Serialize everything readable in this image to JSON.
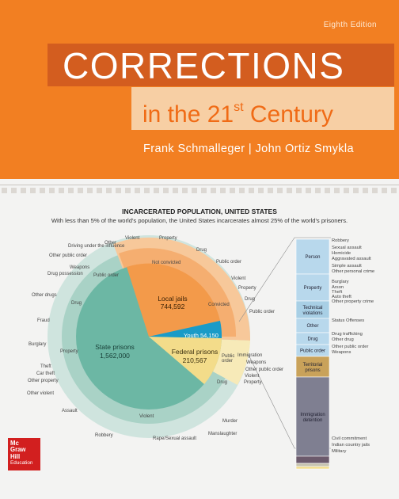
{
  "edition": "Eighth Edition",
  "title": "CORRECTIONS",
  "subtitle_main": "in the 21",
  "subtitle_sup": "st",
  "subtitle_end": " Century",
  "authors": "Frank Schmalleger  |  John Ortiz Smykla",
  "publisher": {
    "line1": "Mc",
    "line2": "Graw",
    "line3": "Hill",
    "line4": "Education"
  },
  "colors": {
    "orange": "#f27f22",
    "dark_orange": "#d35d1f",
    "peach": "#f7cfa4",
    "state": "#6cb7a4",
    "local": "#f39a4a",
    "federal": "#f3dc8a",
    "youth": "#1a9bc7",
    "bar_blue": "#b8d8ec"
  },
  "chart_data": {
    "type": "pie",
    "title": "INCARCERATED POPULATION, UNITED STATES",
    "subtitle": "With less than 5% of the world's population, the United States incarcerates almost 25% of the world's prisoners.",
    "slices": [
      {
        "name": "State prisons",
        "value": 1562000,
        "label": "1,562,000"
      },
      {
        "name": "Local jails",
        "value": 744592,
        "label": "744,592"
      },
      {
        "name": "Federal prisons",
        "value": 210567,
        "label": "210,567"
      },
      {
        "name": "Youth",
        "value": 54150,
        "label": "54,150"
      }
    ],
    "outer_labels": [
      "Other",
      "Driving under the influence",
      "Other public order",
      "Weapons",
      "Drug possession",
      "Public order",
      "Other drugs",
      "Drug",
      "Fraud",
      "Burglary",
      "Property",
      "Theft",
      "Car theft",
      "Other property",
      "Other violent",
      "Assault",
      "Robbery",
      "Violent",
      "Rape/Sexual assault",
      "Manslaughter",
      "Murder",
      "Violent",
      "Property",
      "Drug",
      "Public order",
      "Not convicted",
      "Convicted",
      "Immigration",
      "Weapons",
      "Other public order",
      "Violent",
      "Property"
    ],
    "bar_segments": [
      "Person",
      "Property",
      "Technical violations",
      "Other",
      "Drug",
      "Public order",
      "Territorial prisons",
      "Immigration detention"
    ],
    "bar_labels": [
      "Robbery",
      "Sexual assault",
      "Homicide",
      "Aggravated assault",
      "Simple assault",
      "Other personal crime",
      "Burglary",
      "Arson",
      "Theft",
      "Auto theft",
      "Other property crime",
      "Status Offenses",
      "Drug trafficking",
      "Other drug",
      "Other public order",
      "Weapons",
      "Civil commitment",
      "Indian country jails",
      "Military"
    ]
  }
}
